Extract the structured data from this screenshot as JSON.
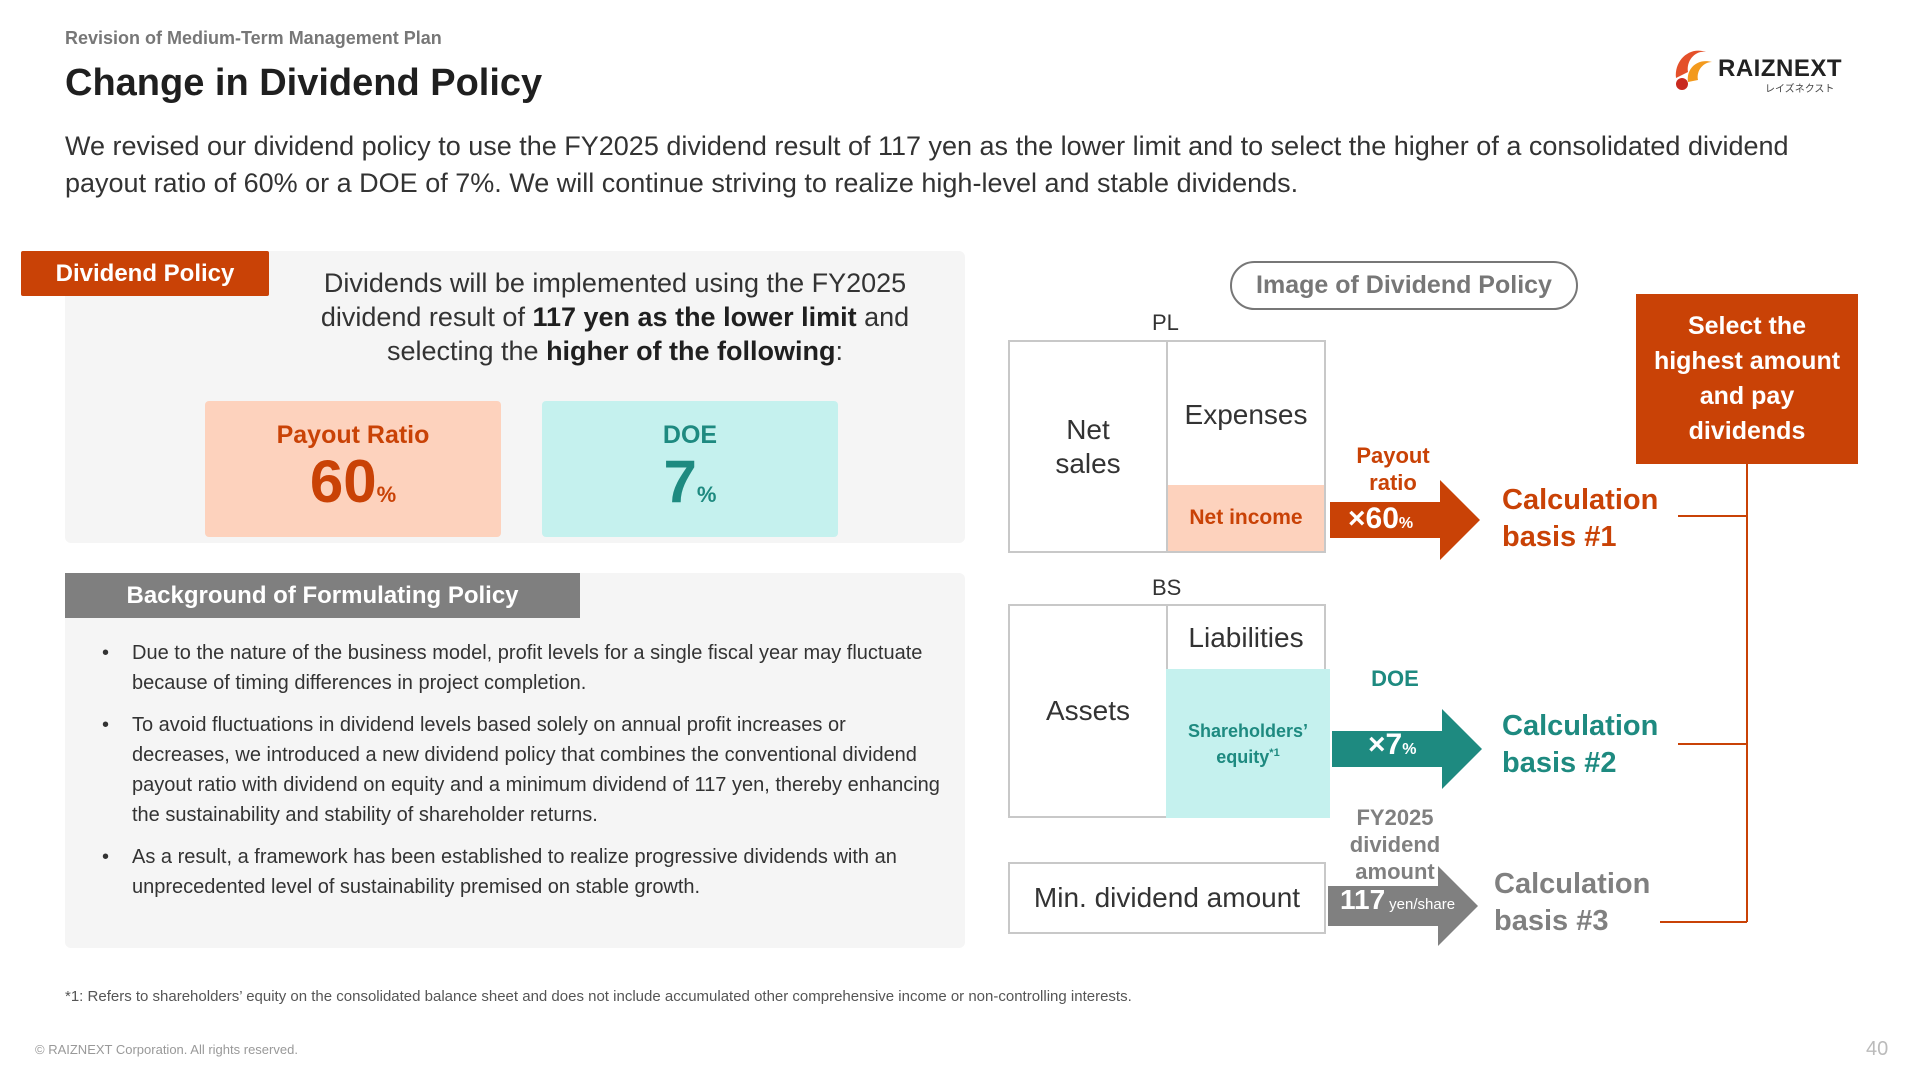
{
  "header": {
    "kicker": "Revision of Medium-Term Management Plan",
    "title": "Change in Dividend Policy",
    "logo_text": "RAIZNEXT",
    "logo_sub": "レイズネクスト"
  },
  "lead": "We revised our dividend policy to use the FY2025 dividend result of 117 yen as the lower limit and to select the higher of a consolidated dividend payout ratio of 60% or a DOE of 7%. We will continue striving to realize high-level and stable dividends.",
  "policy": {
    "tab": "Dividend Policy",
    "text_1": "Dividends will be implemented using the FY2025 dividend result of ",
    "text_bold_1": "117 yen as the lower limit",
    "text_2": " and selecting the ",
    "text_bold_2": "higher of the following",
    "text_3": ":",
    "payout": {
      "label": "Payout Ratio",
      "value": "60",
      "unit": "%"
    },
    "doe": {
      "label": "DOE",
      "value": "7",
      "unit": "%"
    }
  },
  "background": {
    "tab": "Background of Formulating Policy",
    "bullets": [
      "Due to the nature of the business model, profit levels for a single fiscal year may fluctuate because of timing differences in project completion.",
      "To avoid fluctuations in dividend levels based solely on annual profit increases or decreases, we introduced a new dividend policy that combines the conventional dividend payout ratio with dividend on equity and a minimum dividend of 117 yen, thereby enhancing the sustainability and stability of shareholder returns.",
      "As a result, a framework has been established to realize progressive dividends with an unprecedented level of sustainability premised on stable growth."
    ]
  },
  "diagram": {
    "title": "Image of Dividend Policy",
    "pl_label": "PL",
    "bs_label": "BS",
    "net_sales": "Net sales",
    "expenses": "Expenses",
    "net_income": "Net income",
    "assets": "Assets",
    "liabilities": "Liabilities",
    "equity": "Shareholders’ equity",
    "equity_note": "*1",
    "min_dividend": "Min. dividend amount",
    "payout_head": "Payout ratio",
    "payout_mult": "×60",
    "payout_unit": "%",
    "doe_head": "DOE",
    "doe_mult": "×7",
    "doe_unit": "%",
    "fy_head": "FY2025 dividend amount",
    "fy_value": "117",
    "fy_unit": "yen/share",
    "basis1": "Calculation basis #1",
    "basis2": "Calculation basis #2",
    "basis3": "Calculation basis #3",
    "select_text": "Select the highest amount and pay dividends",
    "colors": {
      "orange": "#c94206",
      "teal": "#1e8a80",
      "gray": "#808080"
    }
  },
  "footer": {
    "footnote": "*1: Refers to shareholders’ equity on the consolidated balance sheet and does not include accumulated other comprehensive income or non-controlling interests.",
    "copyright": "© RAIZNEXT Corporation. All rights reserved.",
    "page": "40"
  }
}
